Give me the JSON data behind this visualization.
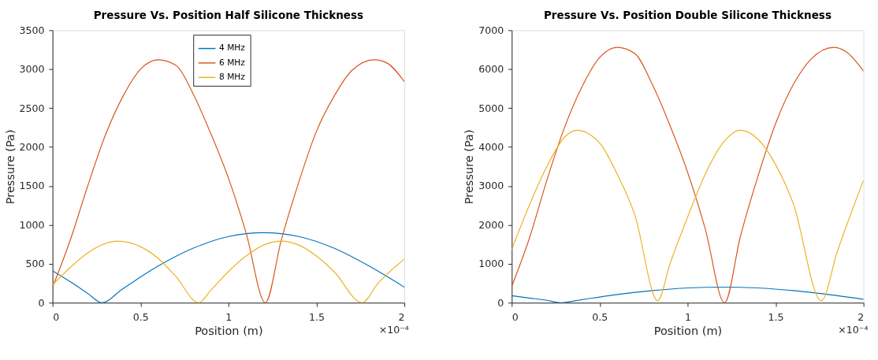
{
  "chart_data": [
    {
      "type": "line",
      "title": "Pressure Vs. Position Half Silicone Thickness",
      "xlabel": "Position (m)",
      "ylabel": "Pressure (Pa)",
      "annotations": [
        "×10⁻⁴"
      ],
      "xlim": [
        0,
        2
      ],
      "xticks": [
        0,
        0.5,
        1,
        1.5,
        2
      ],
      "ylim": [
        0,
        3500
      ],
      "yticks": [
        0,
        500,
        1000,
        1500,
        2000,
        2500,
        3000,
        3500
      ],
      "grid": false,
      "legend": "top",
      "marker": "none",
      "line_style": "solid",
      "series": [
        {
          "name": "4 MHz",
          "color": "#0072bd",
          "x": [
            0,
            0.1,
            0.2,
            0.28,
            0.4,
            0.6,
            0.8,
            1.0,
            1.2,
            1.4,
            1.6,
            1.8,
            2.0
          ],
          "values": [
            410,
            270,
            120,
            0,
            180,
            470,
            700,
            850,
            900,
            850,
            700,
            470,
            200
          ]
        },
        {
          "name": "6 MHz",
          "color": "#d95319",
          "x": [
            0,
            0.1,
            0.2,
            0.3,
            0.4,
            0.5,
            0.6,
            0.7,
            0.8,
            0.9,
            1.0,
            1.1,
            1.21,
            1.3,
            1.4,
            1.5,
            1.6,
            1.7,
            1.83,
            1.9,
            2.0
          ],
          "values": [
            200,
            800,
            1500,
            2150,
            2650,
            3000,
            3120,
            3050,
            2680,
            2170,
            1600,
            900,
            0,
            800,
            1550,
            2200,
            2650,
            2980,
            3120,
            3080,
            2840
          ]
        },
        {
          "name": "8 MHz",
          "color": "#edb120",
          "x": [
            0,
            0.1,
            0.2,
            0.37,
            0.5,
            0.6,
            0.7,
            0.83,
            0.9,
            1.0,
            1.1,
            1.2,
            1.3,
            1.4,
            1.5,
            1.6,
            1.76,
            1.85,
            2.0
          ],
          "values": [
            230,
            450,
            640,
            790,
            720,
            570,
            340,
            0,
            160,
            400,
            600,
            740,
            790,
            740,
            600,
            400,
            0,
            250,
            560
          ]
        }
      ]
    },
    {
      "type": "line",
      "title": "Pressure Vs. Position Double Silicone Thickness",
      "xlabel": "Position (m)",
      "ylabel": "Pressure (Pa)",
      "annotations": [
        "×10⁻⁴"
      ],
      "xlim": [
        0,
        2
      ],
      "xticks": [
        0,
        0.5,
        1,
        1.5,
        2
      ],
      "ylim": [
        0,
        7000
      ],
      "yticks": [
        0,
        1000,
        2000,
        3000,
        4000,
        5000,
        6000,
        7000
      ],
      "grid": false,
      "legend": "top",
      "marker": "none",
      "line_style": "solid",
      "series": [
        {
          "name": "4 MHz",
          "color": "#0072bd",
          "x": [
            0,
            0.1,
            0.2,
            0.28,
            0.4,
            0.6,
            0.8,
            1.0,
            1.2,
            1.4,
            1.6,
            1.8,
            2.0
          ],
          "values": [
            180,
            120,
            60,
            0,
            80,
            210,
            310,
            380,
            400,
            380,
            310,
            210,
            90
          ]
        },
        {
          "name": "6 MHz",
          "color": "#d95319",
          "x": [
            0,
            0.1,
            0.2,
            0.3,
            0.4,
            0.5,
            0.6,
            0.7,
            0.8,
            0.9,
            1.0,
            1.1,
            1.21,
            1.3,
            1.4,
            1.5,
            1.6,
            1.7,
            1.83,
            1.9,
            2.0
          ],
          "values": [
            420,
            1650,
            3150,
            4500,
            5550,
            6300,
            6560,
            6400,
            5600,
            4550,
            3350,
            1900,
            0,
            1700,
            3250,
            4600,
            5600,
            6250,
            6560,
            6450,
            5950
          ]
        },
        {
          "name": "8 MHz",
          "color": "#edb120",
          "x": [
            0,
            0.1,
            0.2,
            0.3,
            0.37,
            0.5,
            0.6,
            0.7,
            0.83,
            0.9,
            1.0,
            1.1,
            1.2,
            1.3,
            1.4,
            1.5,
            1.6,
            1.76,
            1.85,
            2.0
          ],
          "values": [
            1370,
            2500,
            3500,
            4250,
            4430,
            4100,
            3300,
            2250,
            50,
            1000,
            2200,
            3300,
            4100,
            4430,
            4200,
            3550,
            2550,
            50,
            1300,
            3150
          ]
        }
      ]
    }
  ]
}
